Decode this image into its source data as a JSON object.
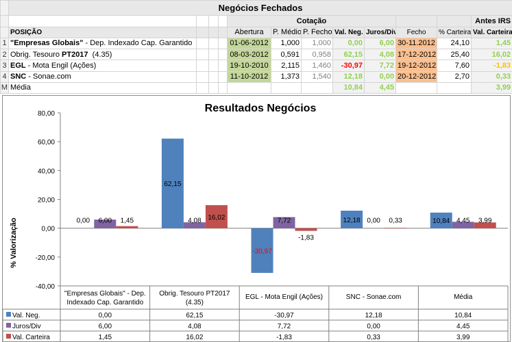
{
  "sheet": {
    "title": "Negócios Fechados",
    "group_cotacao": "Cotação",
    "group_antes_irs": "Antes IRS",
    "headers": {
      "posicao": "POSIÇÃO",
      "abertura": "Abertura",
      "p_medio": "P. Médio",
      "p_fecho": "P. Fecho",
      "val_neg": "Val. Neg.",
      "juros": "Juros/Div",
      "fecho": "Fecho",
      "pct_carteira": "% Carteira",
      "val_carteira": "Val. Carteira"
    },
    "rows": [
      {
        "num": "1",
        "name_bold": "\"Empresas Globais\"",
        "name_rest": " - Dep. Indexado Cap. Garantido",
        "abertura": "01-06-2012",
        "p_medio": "1,000",
        "p_fecho": "1,000",
        "val_neg": "0,00",
        "juros": "6,00",
        "fecho": "30-11.2012",
        "pct_carteira": "24,10",
        "val_carteira": "1,45"
      },
      {
        "num": "2",
        "name_bold": "",
        "name_rest": "Obrig. Tesouro ",
        "name_bold2": "PT2017",
        "name_rest2": "  (4.35)",
        "abertura": "08-03-2012",
        "p_medio": "0,591",
        "p_fecho": "0,958",
        "val_neg": "62,15",
        "juros": "4,08",
        "fecho": "17-12-2012",
        "pct_carteira": "25,40",
        "val_carteira": "16,02"
      },
      {
        "num": "3",
        "name_bold": "EGL",
        "name_rest": " - Mota Engil (Ações)",
        "abertura": "19-10-2010",
        "p_medio": "2,115",
        "p_fecho": "1,460",
        "val_neg": "-30,97",
        "juros": "7,72",
        "fecho": "19-12-2012",
        "pct_carteira": "7,60",
        "val_carteira": "-1,83"
      },
      {
        "num": "4",
        "name_bold": "SNC",
        "name_rest": " - Sonae.com",
        "abertura": "11-10-2012",
        "p_medio": "1,373",
        "p_fecho": "1,540",
        "val_neg": "12,18",
        "juros": "0,00",
        "fecho": "20-12-2012",
        "pct_carteira": "2,70",
        "val_carteira": "0,33"
      }
    ],
    "media": {
      "num": "M",
      "label": "Média",
      "val_neg": "10,84",
      "juros": "4,45",
      "val_carteira": "3,99"
    }
  },
  "chart_data": {
    "type": "bar",
    "title": "Resultados Negócios",
    "ylabel": "% Valorização",
    "ylim": [
      -40,
      80
    ],
    "yticks": [
      "80,00",
      "60,00",
      "40,00",
      "20,00",
      "0,00",
      "-20,00",
      "-40,00"
    ],
    "categories": [
      "\"Empresas Globais\" - Dep. Indexado Cap. Garantido",
      "Obrig. Tesouro PT2017 (4.35)",
      "EGL - Mota Engil (Ações)",
      "SNC - Sonae.com",
      "Média"
    ],
    "series": [
      {
        "name": "Val. Neg.",
        "color": "#4f81bd",
        "values": [
          0.0,
          62.15,
          -30.97,
          12.18,
          10.84
        ],
        "labels": [
          "0,00",
          "62,15",
          "-30,97",
          "12,18",
          "10,84"
        ]
      },
      {
        "name": "Juros/Div",
        "color": "#8064a2",
        "values": [
          6.0,
          4.08,
          7.72,
          0.0,
          4.45
        ],
        "labels": [
          "6,00",
          "4,08",
          "7,72",
          "0,00",
          "4,45"
        ]
      },
      {
        "name": "Val. Carteira",
        "color": "#c0504d",
        "values": [
          1.45,
          16.02,
          -1.83,
          0.33,
          3.99
        ],
        "labels": [
          "1,45",
          "16,02",
          "-1,83",
          "0,33",
          "3,99"
        ]
      }
    ]
  }
}
